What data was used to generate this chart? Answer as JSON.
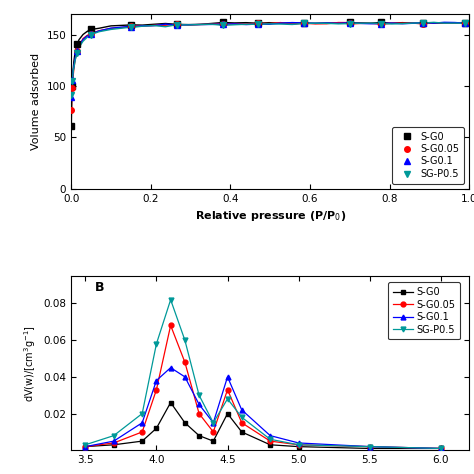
{
  "series": [
    "S-G0",
    "S-G0.05",
    "S-G0.1",
    "SG-P0.5"
  ],
  "colors": [
    "#000000",
    "#ff0000",
    "#0000ff",
    "#009999"
  ],
  "markers": [
    "s",
    "o",
    "^",
    "v"
  ],
  "xlabel_A": "Relative pressure (P/P$_0$)",
  "ylabel_A": "Volume adsorbed",
  "ylabel_B": "dV(w)/[cm$^3$g$^{-1}$]",
  "xlim_A": [
    0.0,
    1.0
  ],
  "ylim_A": [
    0,
    170
  ],
  "yticks_A": [
    0,
    50,
    100,
    150
  ],
  "xticks_A": [
    0.0,
    0.2,
    0.4,
    0.6,
    0.8,
    1.0
  ],
  "ylim_B": [
    0.0,
    0.095
  ],
  "yticks_B": [
    0.02,
    0.04,
    0.06,
    0.08
  ],
  "bg_color": "#ffffff"
}
